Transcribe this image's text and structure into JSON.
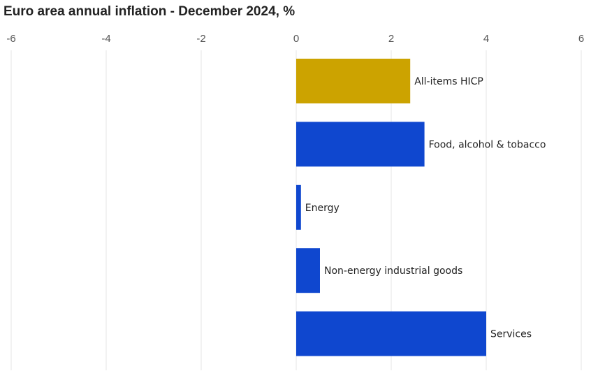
{
  "chart_data": {
    "type": "bar",
    "orientation": "horizontal",
    "title": "Euro area annual inflation - December 2024, %",
    "xlabel": "",
    "ylabel": "",
    "xlim": [
      -6,
      6
    ],
    "ticks": [
      -6,
      -4,
      -2,
      0,
      2,
      4,
      6
    ],
    "tick_labels": [
      "-6",
      "-4",
      "-2",
      "0",
      "2",
      "4",
      "6"
    ],
    "grid": true,
    "categories": [
      "All-items HICP",
      "Food, alcohol & tobacco",
      "Energy",
      "Non-energy industrial goods",
      "Services"
    ],
    "values": [
      2.4,
      2.7,
      0.1,
      0.5,
      4.0
    ],
    "colors": [
      "#CCA300",
      "#0F47CF",
      "#0F47CF",
      "#0F47CF",
      "#0F47CF"
    ]
  }
}
